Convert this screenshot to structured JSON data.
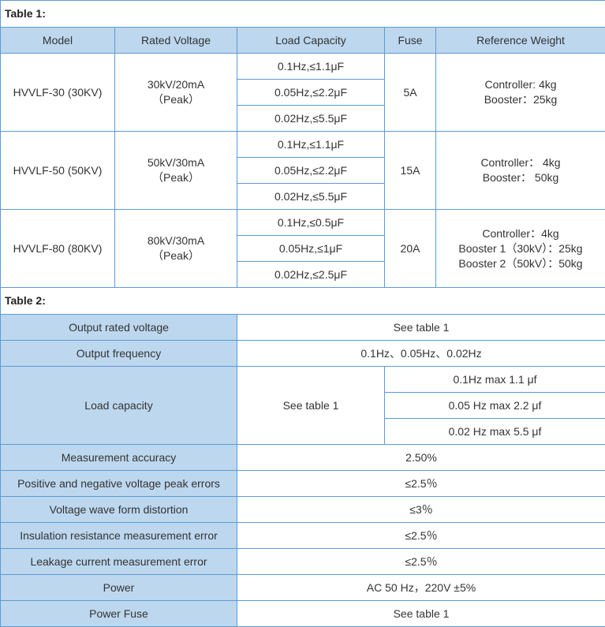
{
  "table1": {
    "title": "Table 1:",
    "headers": [
      "Model",
      "Rated Voltage",
      "Load Capacity",
      "Fuse",
      "Reference Weight"
    ],
    "rows": [
      {
        "model": "HVVLF-30 (30KV)",
        "voltage": "30kV/20mA",
        "peak": "（Peak）",
        "loads": [
          "0.1Hz,≤1.1μF",
          "0.05Hz,≤2.2μF",
          "0.02Hz,≤5.5μF"
        ],
        "fuse": "5A",
        "weight": [
          "Controller: 4kg",
          "Booster：25kg"
        ]
      },
      {
        "model": "HVVLF-50 (50KV)",
        "voltage": "50kV/30mA",
        "peak": "（Peak）",
        "loads": [
          "0.1Hz,≤1.1μF",
          "0.05Hz,≤2.2μF",
          "0.02Hz,≤5.5μF"
        ],
        "fuse": "15A",
        "weight": [
          "Controller： 4kg",
          "Booster： 50kg"
        ]
      },
      {
        "model": "HVVLF-80 (80KV)",
        "voltage": "80kV/30mA",
        "peak": "（Peak）",
        "loads": [
          "0.1Hz,≤0.5μF",
          "0.05Hz,≤1μF",
          "0.02Hz,≤2.5μF"
        ],
        "fuse": "20A",
        "weight": [
          "Controller：4kg",
          "Booster 1（30kV）：25kg",
          "Booster 2（50kV）：50kg"
        ]
      }
    ]
  },
  "table2": {
    "title": "Table 2:",
    "rows": [
      {
        "label": "Output rated voltage",
        "value": "See table 1"
      },
      {
        "label": "Output frequency",
        "value": "0.1Hz、0.05Hz、0.02Hz"
      },
      {
        "label": "Load capacity",
        "value": "See table 1",
        "subvalues": [
          "0.1Hz max 1.1 μf",
          "0.05 Hz max 2.2 μf",
          "0.02 Hz max 5.5 μf"
        ]
      },
      {
        "label": "Measurement accuracy",
        "value": "2.50%"
      },
      {
        "label": "Positive and negative voltage peak errors",
        "value": "≤2.5％"
      },
      {
        "label": "Voltage wave form distortion",
        "value": "≤3％"
      },
      {
        "label": "Insulation resistance measurement error",
        "value": "≤2.5％"
      },
      {
        "label": "Leakage current measurement error",
        "value": "≤2.5％"
      },
      {
        "label": "Power",
        "value": "AC 50 Hz，220V ±5%"
      },
      {
        "label": "Power Fuse",
        "value": "See table 1"
      }
    ]
  }
}
